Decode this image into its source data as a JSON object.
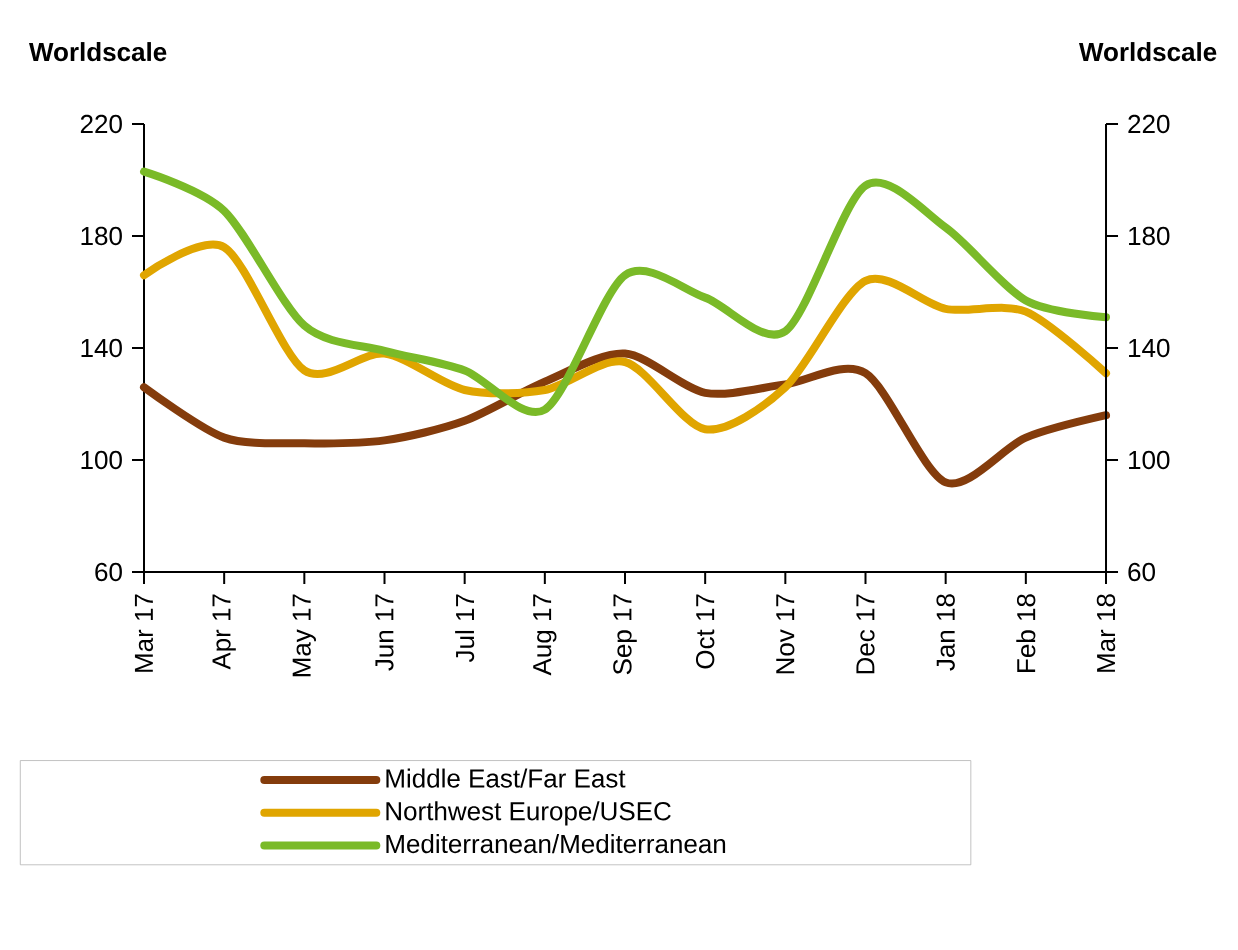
{
  "chart_data": {
    "type": "line",
    "ylabel": "Worldscale",
    "y2label": "Worldscale",
    "categories": [
      "Mar 17",
      "Apr 17",
      "May 17",
      "Jun 17",
      "Jul 17",
      "Aug 17",
      "Sep 17",
      "Oct 17",
      "Nov 17",
      "Dec 17",
      "Jan 18",
      "Feb 18",
      "Mar 18"
    ],
    "series": [
      {
        "name": "Middle East/Far East",
        "color": "#843c0c",
        "values": [
          126,
          108,
          106,
          107,
          114,
          128,
          138,
          124,
          127,
          131,
          92,
          108,
          116
        ]
      },
      {
        "name": "Northwest Europe/USEC",
        "color": "#e0a500",
        "values": [
          166,
          176,
          132,
          138,
          125,
          125,
          135,
          111,
          126,
          164,
          154,
          153,
          131
        ]
      },
      {
        "name": "Mediterranean/Mediterranean",
        "color": "#7aba28",
        "values": [
          203,
          189,
          148,
          139,
          132,
          118,
          166,
          158,
          146,
          198,
          183,
          157,
          151
        ]
      }
    ],
    "ylim": [
      60,
      220
    ],
    "yticks": [
      60,
      100,
      140,
      180,
      220
    ],
    "y2lim": [
      60,
      220
    ],
    "y2ticks": [
      60,
      100,
      140,
      180,
      220
    ],
    "legend": "bottom"
  }
}
